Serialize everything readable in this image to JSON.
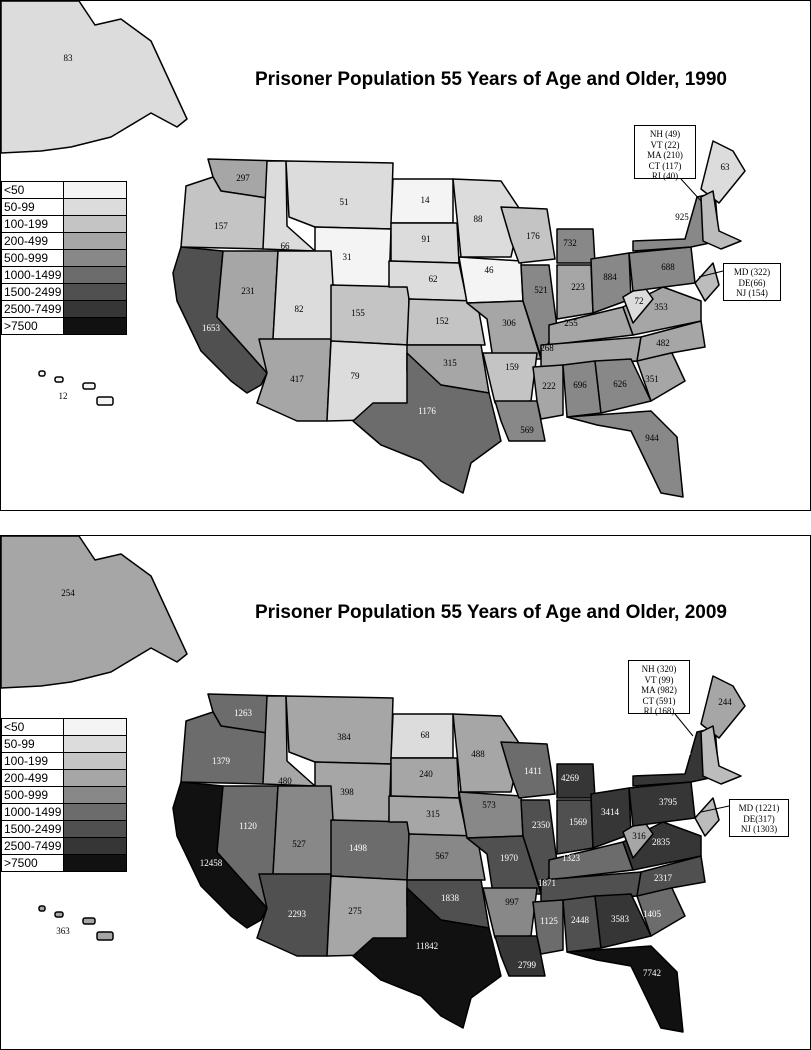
{
  "legend": {
    "labels": [
      "<50",
      "50-99",
      "100-199",
      "200-499",
      "500-999",
      "1000-1499",
      "1500-2499",
      "2500-7499",
      ">7500"
    ],
    "colors": [
      "#f4f4f4",
      "#dcdcdc",
      "#c4c4c4",
      "#a6a6a6",
      "#888888",
      "#6c6c6c",
      "#505050",
      "#363636",
      "#111111"
    ]
  },
  "maps": [
    {
      "title": "Prisoner Population 55 Years of Age and Older, 1990",
      "ne_note": [
        "NH (49)",
        "VT (22)",
        "MA (210)",
        "CT (117)",
        "RI (40)"
      ],
      "mid_note": [
        "MD (322)",
        "DE(66)",
        "NJ (154)"
      ],
      "states": {
        "AK": "83",
        "HI": "12",
        "WA": "297",
        "OR": "157",
        "CA": "1653",
        "ID": "66",
        "NV": "231",
        "MT": "51",
        "WY": "31",
        "UT": "82",
        "AZ": "417",
        "CO": "155",
        "NM": "79",
        "ND": "14",
        "SD": "91",
        "NE": "62",
        "KS": "152",
        "OK": "315",
        "TX": "1176",
        "MN": "88",
        "IA": "46",
        "MO": "306",
        "AR": "159",
        "LA": "569",
        "WI": "176",
        "IL": "521",
        "MI": "732",
        "IN": "223",
        "OH": "884",
        "KY": "255",
        "TN": "268",
        "MS": "222",
        "AL": "696",
        "GA": "626",
        "FL": "944",
        "SC": "351",
        "NC": "482",
        "VA": "353",
        "WV": "72",
        "PA": "688",
        "NY": "925",
        "ME": "63"
      }
    },
    {
      "title": "Prisoner Population 55 Years of Age and Older, 2009",
      "ne_note": [
        "NH (320)",
        "VT (99)",
        "MA (982)",
        "CT (591)",
        "RI (168)"
      ],
      "mid_note": [
        "MD (1221)",
        "DE(317)",
        "NJ (1303)"
      ],
      "states": {
        "AK": "254",
        "HI": "363",
        "WA": "1263",
        "OR": "1379",
        "CA": "12458",
        "ID": "480",
        "NV": "1120",
        "MT": "384",
        "WY": "398",
        "UT": "527",
        "AZ": "2293",
        "CO": "1498",
        "NM": "275",
        "ND": "68",
        "SD": "240",
        "NE": "315",
        "KS": "567",
        "OK": "1838",
        "TX": "11842",
        "MN": "488",
        "IA": "573",
        "MO": "1970",
        "AR": "997",
        "LA": "2799",
        "WI": "1411",
        "IL": "2350",
        "MI": "4269",
        "IN": "1569",
        "OH": "3414",
        "KY": "1323",
        "TN": "1871",
        "MS": "1125",
        "AL": "2448",
        "GA": "3583",
        "FL": "7742",
        "SC": "1405",
        "NC": "2317",
        "VA": "2835",
        "WV": "316",
        "PA": "3795",
        "NY": "3874",
        "ME": "244"
      }
    }
  ]
}
